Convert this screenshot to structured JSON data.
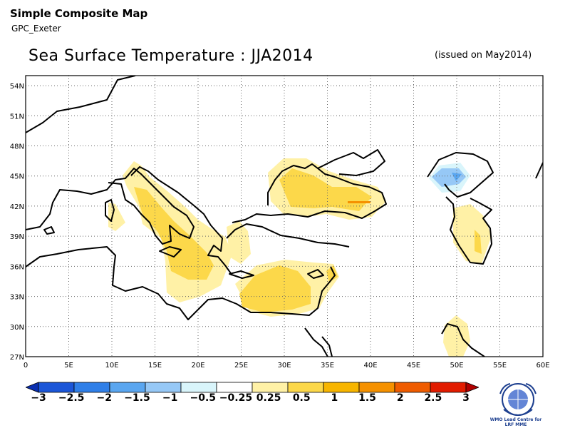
{
  "header": {
    "app_title": "Simple Composite Map",
    "app_subtitle": "GPC_Exeter",
    "map_title": "Sea Surface Temperature : JJA2014",
    "issued": "(issued on May2014)"
  },
  "map": {
    "lon_range": [
      0,
      60
    ],
    "lat_range": [
      27,
      55
    ],
    "lat_ticks": [
      "54N",
      "51N",
      "48N",
      "45N",
      "42N",
      "39N",
      "36N",
      "33N",
      "30N",
      "27N"
    ],
    "lon_ticks": [
      "0",
      "5E",
      "10E",
      "15E",
      "20E",
      "25E",
      "30E",
      "35E",
      "40E",
      "45E",
      "50E",
      "55E",
      "60E"
    ],
    "grid": true
  },
  "legend": {
    "labels": [
      "−3",
      "−2.5",
      "−2",
      "−1.5",
      "−1",
      "−0.5",
      "−0.25",
      "0.25",
      "0.5",
      "1",
      "1.5",
      "2",
      "2.5",
      "3"
    ],
    "colors": [
      "#0a2fb0",
      "#1b56d8",
      "#2f7fe8",
      "#5aa6f0",
      "#96c8f6",
      "#d9f5fb",
      "#ffffff",
      "#fff1a6",
      "#fcd84a",
      "#f7b500",
      "#f59100",
      "#ef5c00",
      "#e21c00",
      "#b00000"
    ]
  },
  "logo": {
    "text_line1": "WMO Lead Centre for",
    "text_line2": "LRF MME"
  }
}
